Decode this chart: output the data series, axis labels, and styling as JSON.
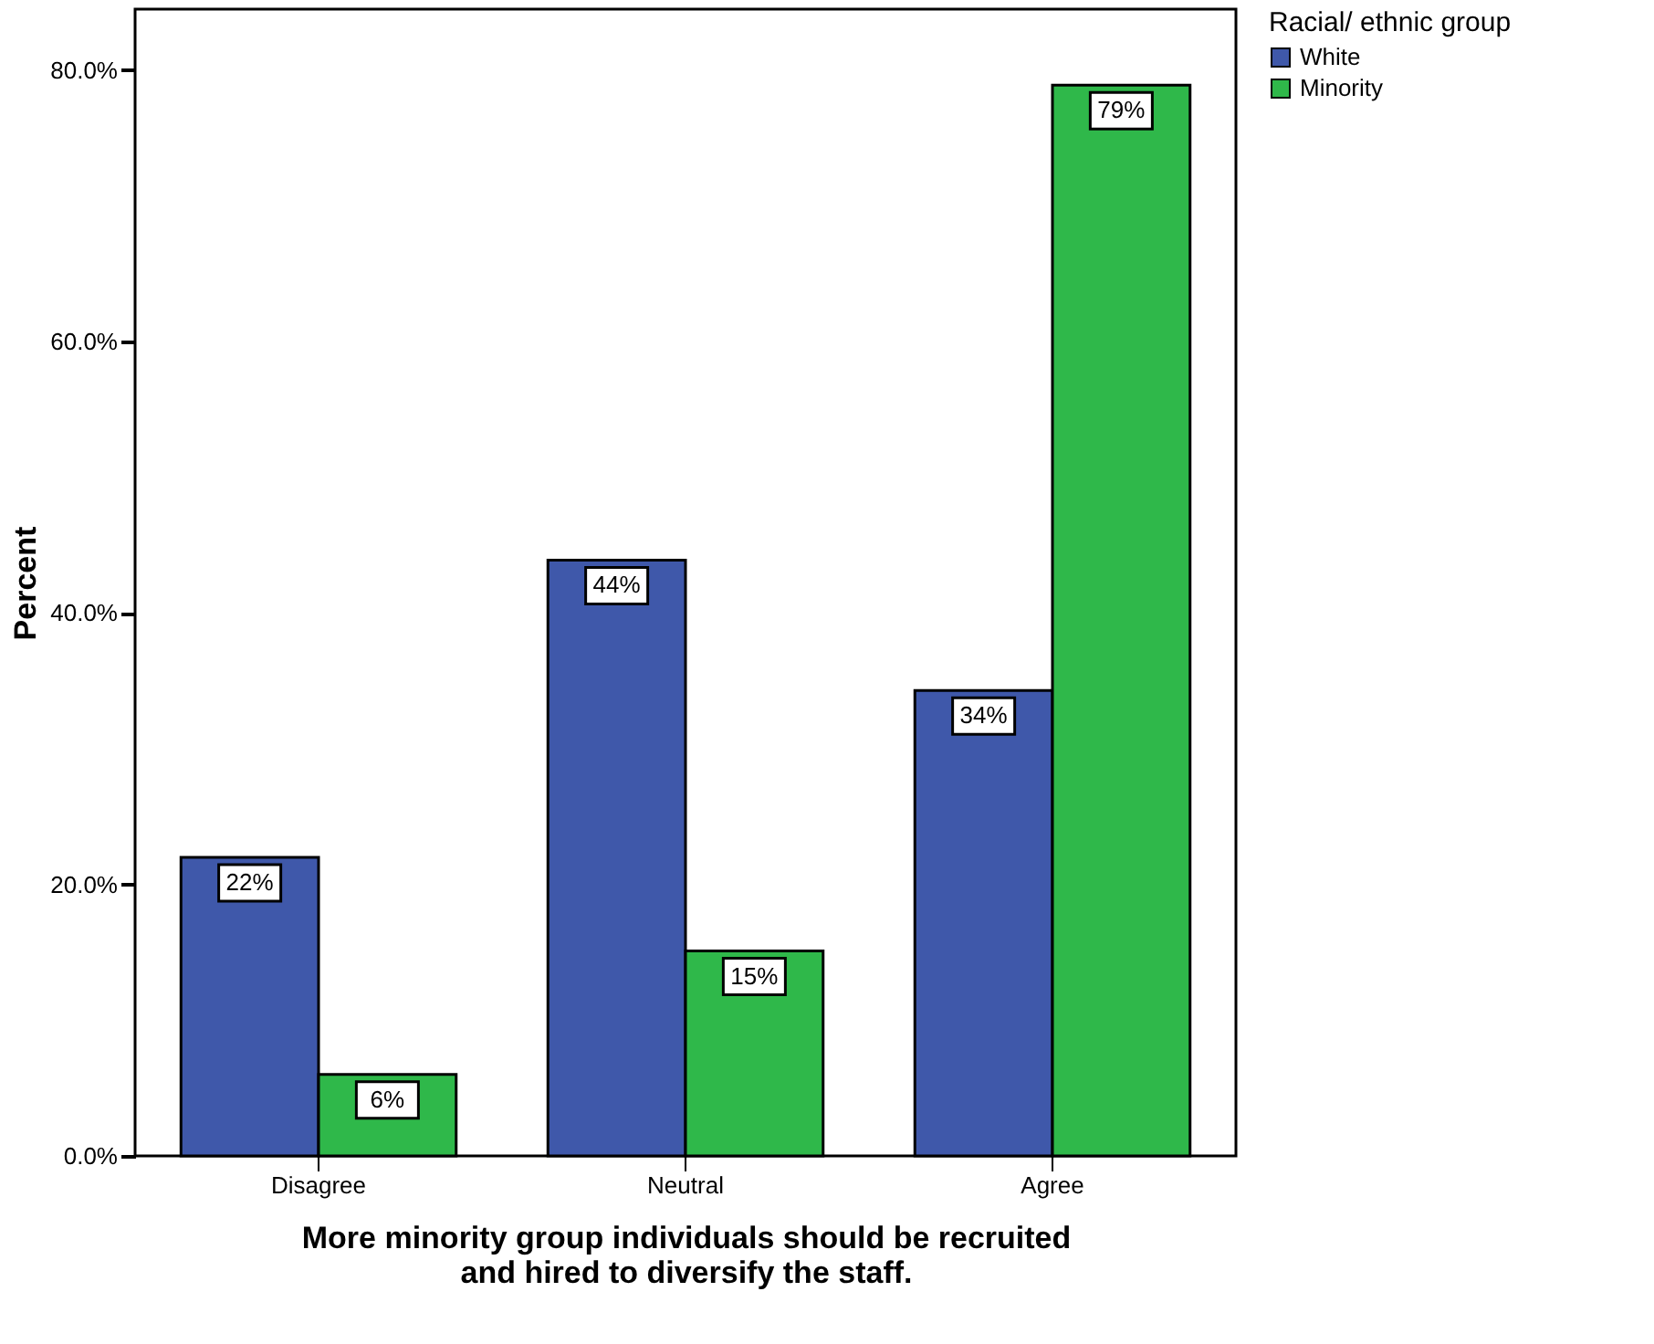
{
  "chart_data": {
    "type": "bar",
    "categories": [
      "Disagree",
      "Neutral",
      "Agree"
    ],
    "series": [
      {
        "name": "White",
        "color": "#3f58aa",
        "values": [
          22.0,
          43.9,
          34.3
        ],
        "value_labels": [
          "22%",
          "44%",
          "34%"
        ]
      },
      {
        "name": "Minority",
        "color": "#2fb84a",
        "values": [
          6.0,
          15.1,
          78.9
        ],
        "value_labels": [
          "6%",
          "15%",
          "79%"
        ]
      }
    ],
    "xlabel": "More minority group individuals should be recruited\nand hired to diversify the staff.",
    "ylabel": "Percent",
    "legend_title": "Racial/ ethnic group",
    "legend": "top right",
    "ylim": [
      0,
      84.5
    ],
    "yticks": [
      {
        "value": 0,
        "label": "0.0%"
      },
      {
        "value": 20,
        "label": "20.0%"
      },
      {
        "value": 40,
        "label": "40.0%"
      },
      {
        "value": 60,
        "label": "60.0%"
      },
      {
        "value": 80,
        "label": "80.0%"
      }
    ],
    "grid": false
  }
}
